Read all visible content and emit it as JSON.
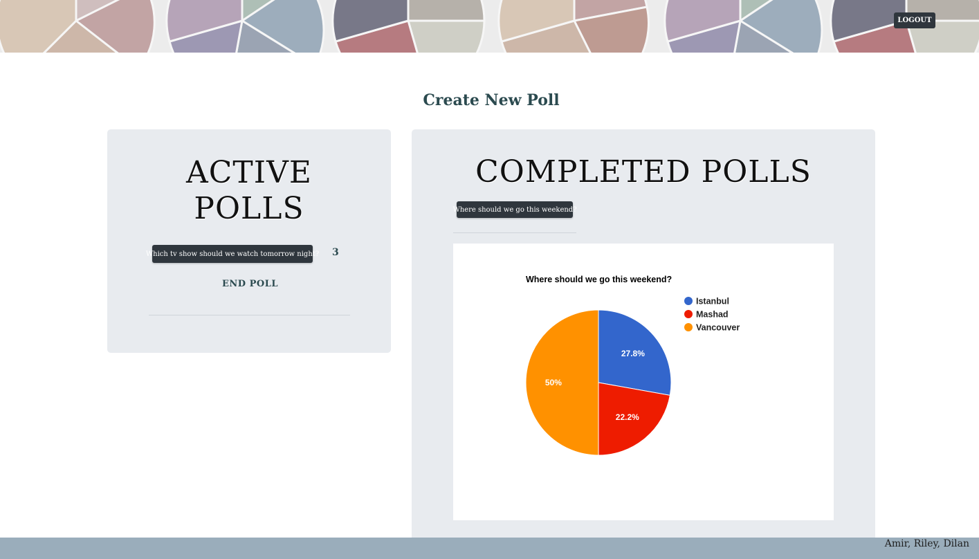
{
  "header": {
    "logout_label": "LOGOUT"
  },
  "main": {
    "create_poll_label": "Create New Poll"
  },
  "active_polls": {
    "title": "ACTIVE POLLS",
    "title_line1": "ACTIVE",
    "title_line2": "POLLS",
    "polls": [
      {
        "question": "Which tv show should we watch tomorrow night?",
        "votes": "3",
        "end_label": "END POLL"
      }
    ]
  },
  "completed_polls": {
    "title": "COMPLETED POLLS",
    "polls": [
      {
        "question": "Where should we go this weekend?"
      }
    ]
  },
  "chart_data": {
    "type": "pie",
    "title": "Where should we go this weekend?",
    "legend_position": "right",
    "slices": [
      {
        "label": "Istanbul",
        "value": 27.8,
        "display": "27.8%",
        "color": "#3366cc"
      },
      {
        "label": "Mashad",
        "value": 22.2,
        "display": "22.2%",
        "color": "#ee1c00"
      },
      {
        "label": "Vancouver",
        "value": 50,
        "display": "50%",
        "color": "#ff9100"
      }
    ]
  },
  "footer": {
    "credits": "Amir, Riley, Dilan"
  }
}
